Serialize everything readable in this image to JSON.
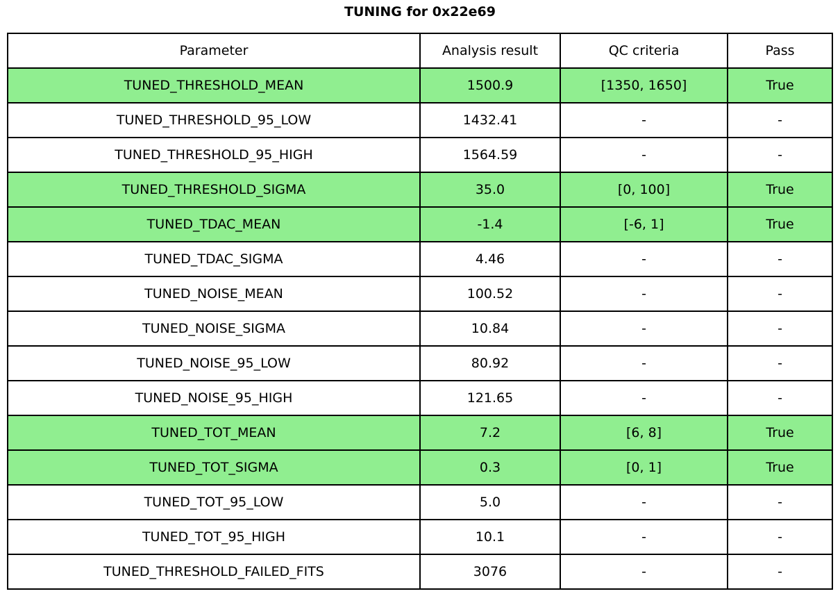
{
  "title": "TUNING for 0x22e69",
  "colors": {
    "pass_highlight": "#90ee90",
    "border": "#000000",
    "background": "#ffffff",
    "text": "#000000"
  },
  "chart_data": {
    "type": "table",
    "title": "TUNING for 0x22e69",
    "columns": [
      "Parameter",
      "Analysis result",
      "QC criteria",
      "Pass"
    ],
    "rows": [
      {
        "parameter": "TUNED_THRESHOLD_MEAN",
        "analysis_result": "1500.9",
        "qc_criteria": "[1350, 1650]",
        "pass": "True",
        "highlighted": true
      },
      {
        "parameter": "TUNED_THRESHOLD_95_LOW",
        "analysis_result": "1432.41",
        "qc_criteria": "-",
        "pass": "-",
        "highlighted": false
      },
      {
        "parameter": "TUNED_THRESHOLD_95_HIGH",
        "analysis_result": "1564.59",
        "qc_criteria": "-",
        "pass": "-",
        "highlighted": false
      },
      {
        "parameter": "TUNED_THRESHOLD_SIGMA",
        "analysis_result": "35.0",
        "qc_criteria": "[0, 100]",
        "pass": "True",
        "highlighted": true
      },
      {
        "parameter": "TUNED_TDAC_MEAN",
        "analysis_result": "-1.4",
        "qc_criteria": "[-6, 1]",
        "pass": "True",
        "highlighted": true
      },
      {
        "parameter": "TUNED_TDAC_SIGMA",
        "analysis_result": "4.46",
        "qc_criteria": "-",
        "pass": "-",
        "highlighted": false
      },
      {
        "parameter": "TUNED_NOISE_MEAN",
        "analysis_result": "100.52",
        "qc_criteria": "-",
        "pass": "-",
        "highlighted": false
      },
      {
        "parameter": "TUNED_NOISE_SIGMA",
        "analysis_result": "10.84",
        "qc_criteria": "-",
        "pass": "-",
        "highlighted": false
      },
      {
        "parameter": "TUNED_NOISE_95_LOW",
        "analysis_result": "80.92",
        "qc_criteria": "-",
        "pass": "-",
        "highlighted": false
      },
      {
        "parameter": "TUNED_NOISE_95_HIGH",
        "analysis_result": "121.65",
        "qc_criteria": "-",
        "pass": "-",
        "highlighted": false
      },
      {
        "parameter": "TUNED_TOT_MEAN",
        "analysis_result": "7.2",
        "qc_criteria": "[6, 8]",
        "pass": "True",
        "highlighted": true
      },
      {
        "parameter": "TUNED_TOT_SIGMA",
        "analysis_result": "0.3",
        "qc_criteria": "[0, 1]",
        "pass": "True",
        "highlighted": true
      },
      {
        "parameter": "TUNED_TOT_95_LOW",
        "analysis_result": "5.0",
        "qc_criteria": "-",
        "pass": "-",
        "highlighted": false
      },
      {
        "parameter": "TUNED_TOT_95_HIGH",
        "analysis_result": "10.1",
        "qc_criteria": "-",
        "pass": "-",
        "highlighted": false
      },
      {
        "parameter": "TUNED_THRESHOLD_FAILED_FITS",
        "analysis_result": "3076",
        "qc_criteria": "-",
        "pass": "-",
        "highlighted": false
      }
    ]
  }
}
